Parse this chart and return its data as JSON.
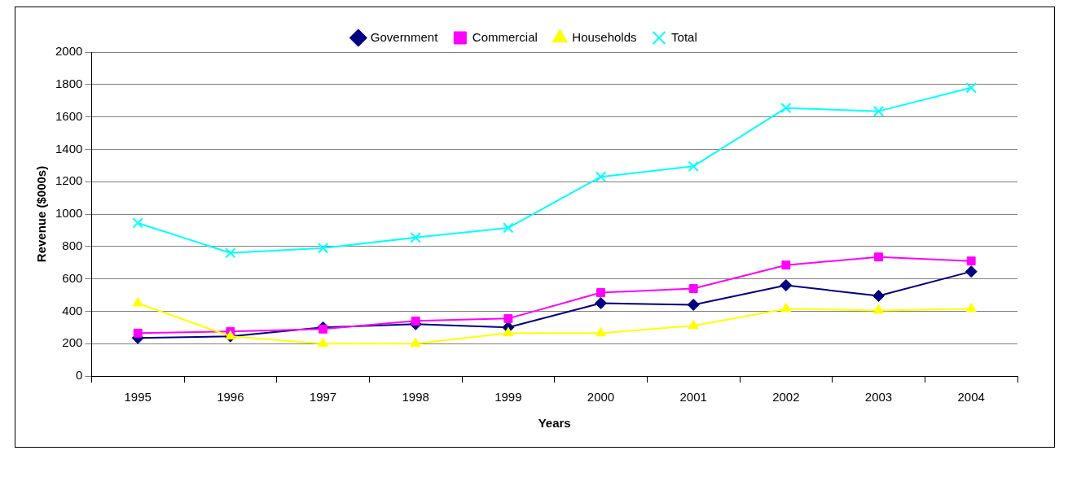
{
  "chart_data": {
    "type": "line",
    "xlabel": "Years",
    "ylabel": "Revenue ($000s)",
    "categories": [
      "1995",
      "1996",
      "1997",
      "1998",
      "1999",
      "2000",
      "2001",
      "2002",
      "2003",
      "2004"
    ],
    "series": [
      {
        "name": "Government",
        "color": "#000080",
        "marker": "diamond",
        "values": [
          235,
          245,
          300,
          320,
          300,
          450,
          440,
          560,
          495,
          645
        ]
      },
      {
        "name": "Commercial",
        "color": "#ff00ff",
        "marker": "square",
        "values": [
          265,
          275,
          290,
          340,
          355,
          515,
          540,
          685,
          735,
          710
        ]
      },
      {
        "name": "Households",
        "color": "#ffff00",
        "marker": "triangle",
        "values": [
          450,
          245,
          200,
          200,
          265,
          265,
          310,
          415,
          405,
          415
        ]
      },
      {
        "name": "Total",
        "color": "#00ffff",
        "marker": "cross",
        "values": [
          945,
          760,
          790,
          855,
          915,
          1230,
          1295,
          1655,
          1635,
          1780
        ]
      }
    ],
    "ylim": [
      0,
      2000
    ],
    "yticks": [
      0,
      200,
      400,
      600,
      800,
      1000,
      1200,
      1400,
      1600,
      1800,
      2000
    ],
    "grid": "y",
    "legend": "top",
    "line_style": "solid"
  }
}
